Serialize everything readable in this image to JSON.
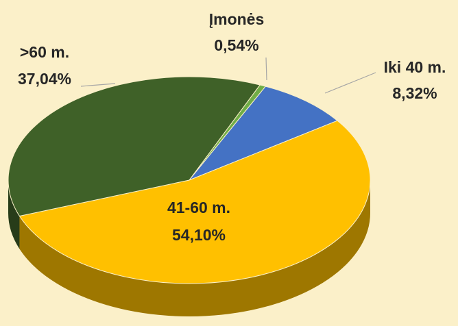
{
  "chart_data": {
    "type": "pie",
    "categories": [
      "Įmonės",
      "Iki 40 m.",
      "41-60 m.",
      ">60 m."
    ],
    "values": [
      0.54,
      8.32,
      54.1,
      37.04
    ],
    "value_labels": [
      "0,54%",
      "8,32%",
      "54,10%",
      "37,04%"
    ],
    "colors": [
      "#70ad47",
      "#4472c4",
      "#ffc000",
      "#3f6128"
    ]
  }
}
